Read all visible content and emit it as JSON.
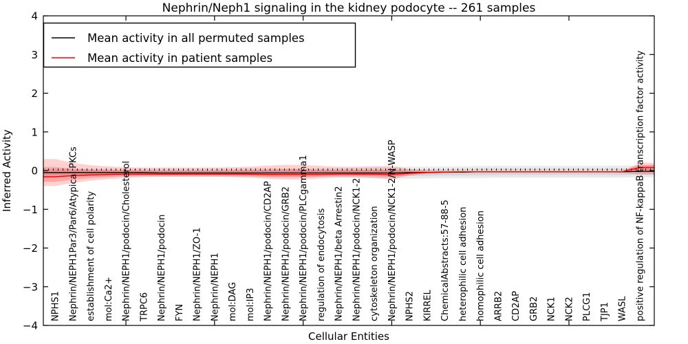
{
  "figure": {
    "title": "Nephrin/Neph1 signaling in the kidney podocyte -- 261 samples",
    "xlabel": "Cellular Entities",
    "ylabel": "Inferred Activity"
  },
  "legend": {
    "entries": [
      {
        "label": "Mean activity in all permuted samples",
        "color": "#000000"
      },
      {
        "label": "Mean activity in patient samples",
        "color": "#ff0000"
      }
    ]
  },
  "chart_data": {
    "type": "line",
    "title": "Nephrin/Neph1 signaling in the kidney podocyte -- 261 samples",
    "xlabel": "Cellular Entities",
    "ylabel": "Inferred Activity",
    "ylim": [
      -4,
      4
    ],
    "yticks": [
      -4,
      -3,
      -2,
      -1,
      0,
      1,
      2,
      3,
      4
    ],
    "xtick_positions": [
      4,
      9,
      14,
      19,
      24,
      29
    ],
    "grid": false,
    "legend_position": "upper left",
    "zero_line": {
      "y": 0,
      "style": "dotted",
      "color": "#000000"
    },
    "categories": [
      "NPHS1",
      "Nephrin/NEPH1Par3/Par6/Atypical PKCs",
      "establishment of cell polarity",
      "mol:Ca2+",
      "Nephrin/NEPH1/podocin/Cholesterol",
      "TRPC6",
      "Nephrin/NEPH1/podocin",
      "FYN",
      "Nephrin/NEPH1/ZO-1",
      "Nephrin/NEPH1",
      "mol:DAG",
      "mol:IP3",
      "Nephrin/NEPH1/podocin/CD2AP",
      "Nephrin/NEPH1/podocin/GRB2",
      "Nephrin/NEPH1/podocin/PLCgamma1",
      "regulation of endocytosis",
      "Nephrin/NEPH1/beta Arrestin2",
      "Nephrin/NEPH1/podocin/NCK1-2",
      "cytoskeleton organization",
      "Nephrin/NEPH1/podocin/NCK1-2/N-WASP",
      "NPHS2",
      "KIRREL",
      "ChemicalAbstracts:57-88-5",
      "heterophilic cell adhesion",
      "homophilic cell adhesion",
      "ARRB2",
      "CD2AP",
      "GRB2",
      "NCK1",
      "NCK2",
      "PLCG1",
      "TJP1",
      "WASL",
      "positive regulation of NF-kappaB transcription factor activity"
    ],
    "series": [
      {
        "name": "Mean activity in all permuted samples",
        "color": "#000000",
        "values": [
          -0.05,
          -0.05,
          -0.05,
          -0.05,
          -0.05,
          -0.05,
          -0.06,
          -0.06,
          -0.06,
          -0.06,
          -0.06,
          -0.06,
          -0.06,
          -0.06,
          -0.06,
          -0.06,
          -0.06,
          -0.06,
          -0.06,
          -0.06,
          -0.05,
          -0.05,
          -0.04,
          -0.04,
          -0.03,
          -0.03,
          -0.03,
          -0.03,
          -0.03,
          -0.03,
          -0.03,
          -0.03,
          -0.03,
          -0.02
        ]
      },
      {
        "name": "Mean activity in patient samples",
        "color": "#ff0000",
        "values": [
          -0.16,
          -0.13,
          -0.11,
          -0.1,
          -0.09,
          -0.09,
          -0.09,
          -0.09,
          -0.09,
          -0.09,
          -0.09,
          -0.09,
          -0.1,
          -0.1,
          -0.1,
          -0.1,
          -0.09,
          -0.09,
          -0.09,
          -0.1,
          -0.07,
          -0.05,
          -0.04,
          -0.03,
          -0.03,
          -0.03,
          -0.03,
          -0.03,
          -0.03,
          -0.03,
          -0.03,
          -0.03,
          -0.03,
          0.08
        ]
      }
    ],
    "bands": [
      {
        "name": "permuted-samples-range",
        "color": "#888888",
        "upper": [
          0.05,
          0.05,
          0.05,
          0.05,
          0.05,
          0.05,
          0.05,
          0.05,
          0.05,
          0.05,
          0.05,
          0.06,
          0.06,
          0.06,
          0.06,
          0.06,
          0.06,
          0.07,
          0.08,
          0.09,
          0.1,
          0.1,
          0.1,
          0.11,
          0.12,
          0.12,
          0.12,
          0.12,
          0.12,
          0.12,
          0.12,
          0.12,
          0.13,
          0.13
        ],
        "lower": [
          -0.15,
          -0.15,
          -0.15,
          -0.15,
          -0.15,
          -0.15,
          -0.16,
          -0.16,
          -0.16,
          -0.16,
          -0.16,
          -0.17,
          -0.17,
          -0.17,
          -0.17,
          -0.16,
          -0.16,
          -0.17,
          -0.19,
          -0.21,
          -0.21,
          -0.2,
          -0.19,
          -0.19,
          -0.19,
          -0.18,
          -0.18,
          -0.18,
          -0.18,
          -0.18,
          -0.18,
          -0.18,
          -0.18,
          -0.17
        ]
      },
      {
        "name": "patient-samples-range",
        "color": "#ff0000",
        "upper": [
          0.3,
          0.2,
          0.14,
          0.11,
          0.09,
          0.08,
          0.08,
          0.08,
          0.08,
          0.08,
          0.09,
          0.1,
          0.13,
          0.15,
          0.15,
          0.12,
          0.1,
          0.1,
          0.11,
          0.12,
          0.04,
          0.01,
          -0.01,
          -0.02,
          -0.02,
          -0.02,
          -0.02,
          -0.02,
          -0.02,
          -0.02,
          -0.02,
          -0.02,
          -0.01,
          0.2
        ],
        "lower": [
          -0.4,
          -0.32,
          -0.26,
          -0.22,
          -0.19,
          -0.17,
          -0.16,
          -0.16,
          -0.16,
          -0.16,
          -0.17,
          -0.18,
          -0.21,
          -0.23,
          -0.23,
          -0.2,
          -0.18,
          -0.18,
          -0.19,
          -0.22,
          -0.13,
          -0.08,
          -0.06,
          -0.05,
          -0.04,
          -0.04,
          -0.04,
          -0.04,
          -0.04,
          -0.04,
          -0.04,
          -0.04,
          -0.05,
          -0.1
        ]
      }
    ]
  }
}
